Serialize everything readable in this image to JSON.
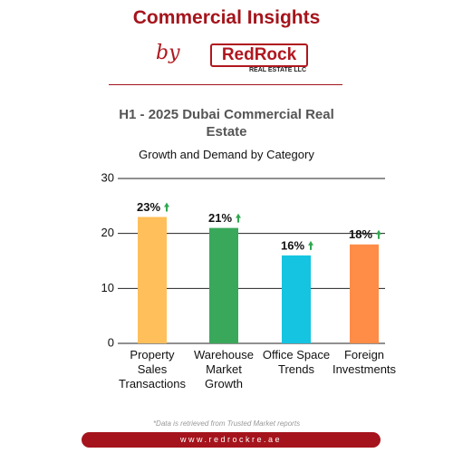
{
  "header": {
    "title": "Commercial Insights",
    "by": "by",
    "logo": "RedRock",
    "logo_sub": "REAL ESTATE LLC"
  },
  "chart_data": {
    "type": "bar",
    "title": "H1 - 2025 Dubai Commercial Real Estate",
    "subtitle": "Growth and Demand by Category",
    "categories": [
      "Property Sales Transactions",
      "Warehouse Market Growth",
      "Office Space Trends",
      "Foreign Investments"
    ],
    "values": [
      23,
      21,
      16,
      18
    ],
    "value_labels": [
      "23%",
      "21%",
      "16%",
      "18%"
    ],
    "colors": [
      "#ffbf5a",
      "#3aa85b",
      "#14c4e0",
      "#ff8c47"
    ],
    "ylim": [
      0,
      30
    ],
    "yticks": [
      0,
      10,
      20,
      30
    ],
    "grid": true
  },
  "footer": {
    "note": "*Data is retrieved from Trusted Market reports",
    "url": "www.redrockre.ae"
  }
}
